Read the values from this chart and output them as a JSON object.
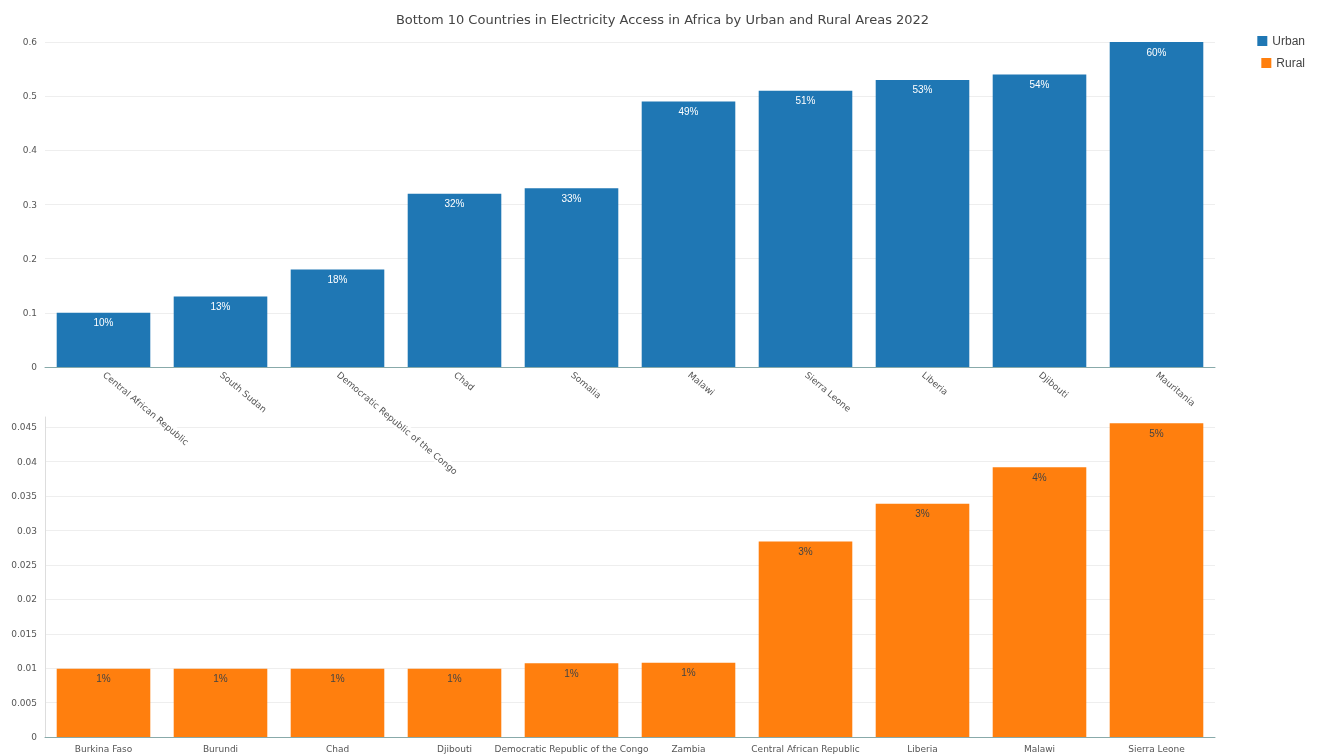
{
  "chart_data": [
    {
      "type": "bar",
      "title": "Bottom 10 Countries in Electricity Access in Africa by Urban and Rural Areas 2022",
      "categories": [
        "Central African Republic",
        "South Sudan",
        "Democratic Republic of the Congo",
        "Chad",
        "Somalia",
        "Malawi",
        "Sierra Leone",
        "Liberia",
        "Djibouti",
        "Mauritania"
      ],
      "series": [
        {
          "name": "Urban",
          "color": "#1f77b4",
          "values": [
            0.1,
            0.13,
            0.18,
            0.32,
            0.33,
            0.49,
            0.51,
            0.53,
            0.54,
            0.6
          ],
          "value_labels": [
            "10%",
            "13%",
            "18%",
            "32%",
            "33%",
            "49%",
            "51%",
            "53%",
            "54%",
            "60%"
          ]
        }
      ],
      "ylim": [
        0,
        0.6
      ],
      "yticks": [
        0,
        0.1,
        0.2,
        0.3,
        0.4,
        0.5,
        0.6
      ],
      "grid": "y",
      "legend": "top right"
    },
    {
      "type": "bar",
      "categories": [
        "Burkina Faso",
        "Burundi",
        "Chad",
        "Djibouti",
        "Democratic Republic of the Congo",
        "Zambia",
        "Central African Republic",
        "Liberia",
        "Malawi",
        "Sierra Leone"
      ],
      "series": [
        {
          "name": "Rural",
          "color": "#ff7f0e",
          "values": [
            0.0099,
            0.0099,
            0.0099,
            0.0099,
            0.0107,
            0.0108,
            0.0284,
            0.0339,
            0.0392,
            0.0456
          ],
          "value_labels": [
            "1%",
            "1%",
            "1%",
            "1%",
            "1%",
            "1%",
            "3%",
            "3%",
            "4%",
            "5%"
          ]
        }
      ],
      "ylim": [
        0,
        0.0465
      ],
      "yticks": [
        0,
        0.005,
        0.01,
        0.015,
        0.02,
        0.025,
        0.03,
        0.035,
        0.04,
        0.045
      ],
      "grid": "y",
      "legend": "top right"
    }
  ]
}
